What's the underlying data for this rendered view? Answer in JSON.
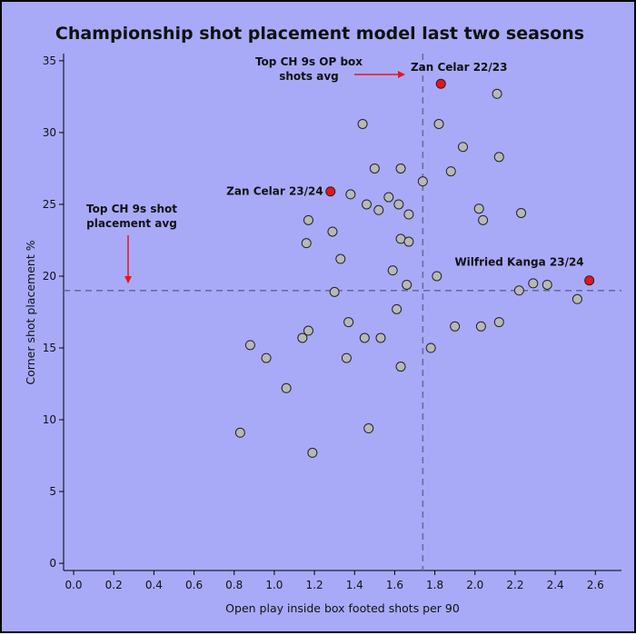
{
  "chart_data": {
    "type": "scatter",
    "title": "Championship shot placement model last two seasons",
    "xlabel": "Open play inside box footed shots per 90",
    "ylabel": "Corner shot placement %",
    "xlim": [
      -0.05,
      2.73
    ],
    "ylim": [
      -0.5,
      35.5
    ],
    "xticks": [
      "0.0",
      "0.2",
      "0.4",
      "0.6",
      "0.8",
      "1.0",
      "1.2",
      "1.4",
      "1.6",
      "1.8",
      "2.0",
      "2.2",
      "2.4",
      "2.6"
    ],
    "yticks": [
      "0",
      "5",
      "10",
      "15",
      "20",
      "25",
      "30",
      "35"
    ],
    "grid": false,
    "colors": {
      "background": "#a8aaf8",
      "point": "#b8b8b8",
      "highlight": "#e8141b",
      "reference_line": "#6b6b9c"
    },
    "reference_lines": [
      {
        "axis": "x",
        "value": 1.74
      },
      {
        "axis": "y",
        "value": 19.0
      }
    ],
    "annotations": [
      {
        "text_lines": [
          "Top CH 9s OP box",
          "shots avg"
        ],
        "arrow": "right"
      },
      {
        "text_lines": [
          "Top CH 9s shot",
          "placement avg"
        ],
        "arrow": "down"
      }
    ],
    "series": [
      {
        "points": [
          {
            "x": 0.83,
            "y": 9.1
          },
          {
            "x": 0.88,
            "y": 15.2
          },
          {
            "x": 0.96,
            "y": 14.3
          },
          {
            "x": 1.06,
            "y": 12.2
          },
          {
            "x": 1.14,
            "y": 15.7
          },
          {
            "x": 1.16,
            "y": 22.3
          },
          {
            "x": 1.17,
            "y": 23.9
          },
          {
            "x": 1.17,
            "y": 16.2
          },
          {
            "x": 1.19,
            "y": 7.7
          },
          {
            "x": 1.29,
            "y": 23.1
          },
          {
            "x": 1.3,
            "y": 18.9
          },
          {
            "x": 1.33,
            "y": 21.2
          },
          {
            "x": 1.36,
            "y": 14.3
          },
          {
            "x": 1.37,
            "y": 16.8
          },
          {
            "x": 1.38,
            "y": 25.7
          },
          {
            "x": 1.44,
            "y": 30.6
          },
          {
            "x": 1.45,
            "y": 15.7
          },
          {
            "x": 1.46,
            "y": 25.0
          },
          {
            "x": 1.47,
            "y": 9.4
          },
          {
            "x": 1.5,
            "y": 27.5
          },
          {
            "x": 1.52,
            "y": 24.6
          },
          {
            "x": 1.53,
            "y": 15.7
          },
          {
            "x": 1.57,
            "y": 25.5
          },
          {
            "x": 1.59,
            "y": 20.4
          },
          {
            "x": 1.61,
            "y": 17.7
          },
          {
            "x": 1.62,
            "y": 25.0
          },
          {
            "x": 1.63,
            "y": 27.5
          },
          {
            "x": 1.63,
            "y": 22.6
          },
          {
            "x": 1.63,
            "y": 13.7
          },
          {
            "x": 1.66,
            "y": 19.4
          },
          {
            "x": 1.67,
            "y": 22.4
          },
          {
            "x": 1.67,
            "y": 24.3
          },
          {
            "x": 1.74,
            "y": 26.6
          },
          {
            "x": 1.78,
            "y": 15.0
          },
          {
            "x": 1.81,
            "y": 20.0
          },
          {
            "x": 1.82,
            "y": 30.6
          },
          {
            "x": 1.88,
            "y": 27.3
          },
          {
            "x": 1.9,
            "y": 16.5
          },
          {
            "x": 1.94,
            "y": 29.0
          },
          {
            "x": 2.02,
            "y": 24.7
          },
          {
            "x": 2.03,
            "y": 16.5
          },
          {
            "x": 2.04,
            "y": 23.9
          },
          {
            "x": 2.11,
            "y": 32.7
          },
          {
            "x": 2.12,
            "y": 28.3
          },
          {
            "x": 2.12,
            "y": 16.8
          },
          {
            "x": 2.22,
            "y": 19.0
          },
          {
            "x": 2.23,
            "y": 24.4
          },
          {
            "x": 2.29,
            "y": 19.5
          },
          {
            "x": 2.36,
            "y": 19.4
          },
          {
            "x": 2.51,
            "y": 18.4
          }
        ]
      },
      {
        "highlight": true,
        "points": [
          {
            "x": 1.83,
            "y": 33.4,
            "label": "Zan Celar 22/23"
          },
          {
            "x": 1.28,
            "y": 25.9,
            "label": "Zan Celar 23/24"
          },
          {
            "x": 2.57,
            "y": 19.7,
            "label": "Wilfried Kanga 23/24"
          }
        ]
      }
    ]
  }
}
